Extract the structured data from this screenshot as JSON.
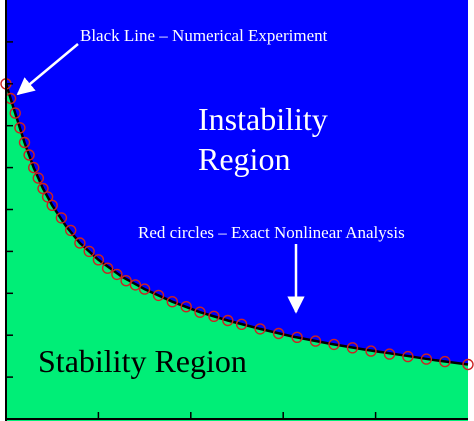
{
  "chart_data": {
    "type": "area",
    "title": "",
    "xlabel": "",
    "ylabel": "",
    "xlim": [
      0,
      1
    ],
    "ylim": [
      0,
      1
    ],
    "grid": false,
    "regions": [
      {
        "label_line1": "Instability",
        "label_line2": "Region",
        "color": "#0000FF"
      },
      {
        "label": "Stability Region",
        "color": "#00EE77"
      }
    ],
    "series": [
      {
        "marker": "line",
        "color": "#000000",
        "x": [
          0.0,
          0.02,
          0.04,
          0.06,
          0.08,
          0.1,
          0.13,
          0.16,
          0.2,
          0.25,
          0.3,
          0.36,
          0.42,
          0.48,
          0.55,
          0.62,
          0.7,
          0.78,
          0.86,
          0.93,
          1.0
        ],
        "y": [
          0.8,
          0.73,
          0.66,
          0.6,
          0.55,
          0.51,
          0.46,
          0.42,
          0.38,
          0.34,
          0.31,
          0.28,
          0.255,
          0.235,
          0.215,
          0.197,
          0.18,
          0.165,
          0.152,
          0.14,
          0.13
        ]
      },
      {
        "marker": "circle",
        "color": "#CC2222",
        "x": [
          0.0,
          0.01,
          0.02,
          0.03,
          0.04,
          0.05,
          0.06,
          0.07,
          0.08,
          0.09,
          0.1,
          0.12,
          0.14,
          0.16,
          0.18,
          0.2,
          0.22,
          0.24,
          0.26,
          0.28,
          0.3,
          0.33,
          0.36,
          0.39,
          0.42,
          0.45,
          0.48,
          0.51,
          0.55,
          0.59,
          0.63,
          0.67,
          0.71,
          0.75,
          0.79,
          0.83,
          0.87,
          0.91,
          0.95,
          1.0
        ],
        "y": [
          0.8,
          0.765,
          0.73,
          0.695,
          0.66,
          0.63,
          0.6,
          0.575,
          0.55,
          0.53,
          0.51,
          0.48,
          0.45,
          0.42,
          0.4,
          0.38,
          0.36,
          0.345,
          0.33,
          0.32,
          0.31,
          0.295,
          0.28,
          0.268,
          0.255,
          0.245,
          0.235,
          0.226,
          0.215,
          0.204,
          0.195,
          0.186,
          0.178,
          0.17,
          0.162,
          0.155,
          0.149,
          0.143,
          0.137,
          0.13
        ]
      }
    ],
    "annotations": [
      {
        "text": "Black Line – Numerical Experiment"
      },
      {
        "text": "Red circles – Exact Nonlinear Analysis"
      }
    ],
    "x_ticks": [
      0.2,
      0.4,
      0.6,
      0.8
    ],
    "y_ticks": [
      0.1,
      0.2,
      0.3,
      0.4,
      0.5,
      0.6,
      0.7,
      0.8,
      0.9
    ]
  }
}
